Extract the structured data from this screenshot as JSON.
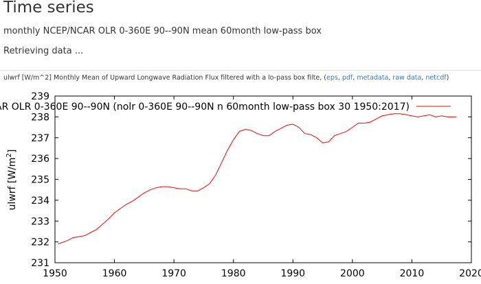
{
  "header": {
    "title": "Time series",
    "subtitle": "monthly NCEP/NCAR OLR 0-360E 90--90N mean 60month low-pass box",
    "status": "Retrieving data ..."
  },
  "caption": {
    "text": "ulwrf [W/m^2] Monthly Mean of Upward Longwave Radiation Flux filtered with a lo-pass box filte, (",
    "links": [
      "eps",
      "pdf",
      "metadata",
      "raw data",
      "netcdf"
    ],
    "close": ")"
  },
  "colors": {
    "series": "#ff0000",
    "link": "#337ab7"
  },
  "chart_data": {
    "type": "line",
    "title": "",
    "xlabel": "",
    "ylabel_main": "ulwrf [W/m",
    "ylabel_sup": "2",
    "ylabel_end": "]",
    "xlim": [
      1950,
      2020
    ],
    "ylim": [
      231,
      239
    ],
    "x_ticks": [
      1950,
      1960,
      1970,
      1980,
      1990,
      2000,
      2010,
      2020
    ],
    "y_ticks": [
      231,
      232,
      233,
      234,
      235,
      236,
      237,
      238,
      239
    ],
    "legend": {
      "label": "AR OLR 0-360E 90--90N (nolr 0-360E 90--90N n 60month low-pass box 30 1950:2017)",
      "placement": "top-right"
    },
    "series": [
      {
        "name": "AR OLR 0-360E 90--90N (nolr 0-360E 90--90N n 60month low-pass box 30 1950:2017)",
        "x": [
          1950.5,
          1951,
          1952,
          1953,
          1954,
          1955,
          1956,
          1957,
          1958,
          1959,
          1960,
          1961,
          1962,
          1963,
          1964,
          1965,
          1966,
          1967,
          1968,
          1969,
          1970,
          1971,
          1972,
          1973,
          1974,
          1975,
          1976,
          1977,
          1978,
          1979,
          1980,
          1981,
          1982,
          1983,
          1984,
          1985,
          1986,
          1987,
          1988,
          1989,
          1990,
          1991,
          1992,
          1993,
          1994,
          1995,
          1996,
          1997,
          1998,
          1999,
          2000,
          2001,
          2002,
          2003,
          2004,
          2005,
          2006,
          2007,
          2008,
          2009,
          2010,
          2011,
          2012,
          2013,
          2014,
          2015,
          2016,
          2017,
          2017.5
        ],
        "y": [
          231.9,
          231.95,
          232.05,
          232.2,
          232.25,
          232.3,
          232.45,
          232.6,
          232.85,
          233.1,
          233.4,
          233.6,
          233.8,
          233.95,
          234.15,
          234.35,
          234.5,
          234.6,
          234.65,
          234.65,
          234.6,
          234.55,
          234.55,
          234.45,
          234.45,
          234.6,
          234.8,
          235.2,
          235.8,
          236.4,
          236.9,
          237.3,
          237.4,
          237.35,
          237.2,
          237.1,
          237.1,
          237.3,
          237.45,
          237.6,
          237.65,
          237.5,
          237.2,
          237.15,
          237.0,
          236.75,
          236.8,
          237.1,
          237.2,
          237.3,
          237.5,
          237.7,
          237.7,
          237.75,
          237.9,
          238.05,
          238.1,
          238.15,
          238.15,
          238.1,
          238.05,
          238.0,
          238.05,
          238.1,
          238.0,
          238.05,
          238.0,
          238.0,
          238.0
        ]
      }
    ]
  }
}
